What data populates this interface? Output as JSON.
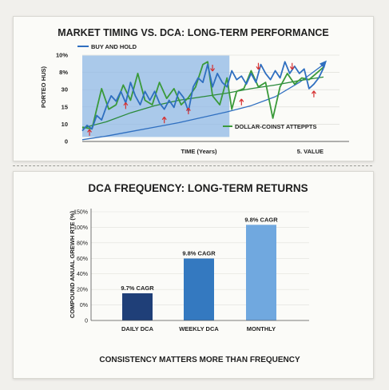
{
  "chart_data": [
    {
      "type": "line",
      "title": "MARKET TIMING VS. DCA: LONG-TERM PERFORMANCE",
      "xlabel": "TIME (Years)",
      "xlabel_right": "5. VALUE",
      "ylabel": "PORTEO HUS)",
      "y_ticks": [
        "10%",
        "8%",
        "30",
        "15",
        "10",
        "0"
      ],
      "ylim": [
        0,
        10
      ],
      "xlim": [
        0,
        5
      ],
      "series": [
        {
          "name": "BUY AND HOLD",
          "color": "#2f6fc0",
          "x": [
            0.0,
            0.1,
            0.2,
            0.3,
            0.4,
            0.5,
            0.6,
            0.7,
            0.8,
            0.9,
            1.0,
            1.1,
            1.2,
            1.3,
            1.4,
            1.5,
            1.6,
            1.7,
            1.8,
            1.9,
            2.0,
            2.1,
            2.2,
            2.3,
            2.4,
            2.5,
            2.6,
            2.7,
            2.8,
            2.9,
            3.0,
            3.1,
            3.2,
            3.3,
            3.4,
            3.5,
            3.6,
            3.7,
            3.8,
            3.9,
            4.0,
            4.1,
            4.2,
            4.3,
            4.4,
            4.5,
            4.6,
            4.7,
            4.8,
            4.9,
            5.0
          ],
          "values": [
            1.2,
            1.8,
            1.4,
            2.9,
            2.4,
            3.9,
            5.1,
            4.5,
            5.6,
            4.3,
            6.6,
            5.1,
            4.1,
            5.6,
            4.6,
            5.6,
            4.3,
            3.6,
            4.6,
            3.8,
            5.6,
            4.9,
            3.4,
            6.1,
            7.1,
            6.6,
            8.6,
            6.1,
            7.6,
            6.6,
            6.1,
            7.9,
            6.9,
            7.3,
            6.4,
            7.6,
            6.6,
            8.6,
            7.6,
            6.9,
            7.9,
            7.1,
            8.9,
            7.6,
            8.4,
            7.6,
            8.1,
            5.9,
            6.4,
            7.1,
            8.2
          ]
        },
        {
          "name": "DOLLAR-COINST ATTEPPTS",
          "color": "#3a9a3a",
          "x": [
            0.0,
            0.2,
            0.4,
            0.55,
            0.7,
            0.85,
            1.0,
            1.15,
            1.3,
            1.45,
            1.6,
            1.75,
            1.9,
            2.05,
            2.2,
            2.35,
            2.5,
            2.6,
            2.7,
            2.85,
            3.0,
            3.1,
            3.2,
            3.35,
            3.5,
            3.65,
            3.8,
            3.95,
            4.1,
            4.25,
            4.4,
            4.55,
            4.7,
            4.85,
            5.0
          ],
          "values": [
            1.6,
            1.4,
            5.9,
            3.6,
            4.1,
            6.3,
            4.6,
            7.6,
            4.6,
            4.1,
            6.6,
            4.8,
            5.9,
            4.1,
            4.9,
            6.1,
            8.6,
            8.9,
            5.1,
            4.1,
            7.1,
            3.6,
            5.6,
            5.9,
            7.9,
            6.1,
            6.6,
            2.6,
            6.1,
            7.6,
            6.4,
            7.1,
            6.9,
            7.6,
            8.3
          ]
        },
        {
          "name": "",
          "color": "#2a8a3a",
          "x": [
            0,
            0.5,
            1,
            1.5,
            2,
            2.5,
            3,
            3.5,
            4,
            4.5,
            5
          ],
          "values": [
            1.5,
            2.2,
            3.2,
            4.0,
            4.6,
            5.0,
            5.4,
            5.9,
            6.3,
            6.8,
            7.2
          ]
        },
        {
          "name": "",
          "color": "#2f6fc0",
          "x": [
            0,
            0.5,
            1,
            1.5,
            2,
            2.5,
            3,
            3.5,
            4,
            4.5,
            5
          ],
          "values": [
            0.2,
            0.6,
            1.1,
            1.6,
            2.1,
            2.7,
            3.3,
            4.0,
            5.0,
            6.6,
            8.6
          ]
        }
      ],
      "markers": [
        {
          "x": 0.15,
          "y": 0.9,
          "dir": "up"
        },
        {
          "x": 0.9,
          "y": 3.9,
          "dir": "up"
        },
        {
          "x": 1.7,
          "y": 2.3,
          "dir": "up"
        },
        {
          "x": 2.2,
          "y": 3.3,
          "dir": "up"
        },
        {
          "x": 2.7,
          "y": 8.3,
          "dir": "down"
        },
        {
          "x": 3.3,
          "y": 4.3,
          "dir": "up"
        },
        {
          "x": 3.65,
          "y": 8.5,
          "dir": "down"
        },
        {
          "x": 4.35,
          "y": 8.5,
          "dir": "down"
        },
        {
          "x": 4.8,
          "y": 5.2,
          "dir": "up"
        }
      ],
      "shaded_region": {
        "x": [
          0,
          3.05
        ],
        "y": [
          0.5,
          9.6
        ]
      }
    },
    {
      "type": "bar",
      "title": "DCA FREQUENCY: LONG-TERM RETURNS",
      "ylabel": "COMPOUND ANUAL GREWH RTE (%)",
      "y_ticks": [
        "150%",
        "100%",
        "80%",
        "60%",
        "40%",
        "20%",
        "0%",
        "0"
      ],
      "categories": [
        "DAILY DCA",
        "WEEKLY DCA",
        "MONTHLY"
      ],
      "values": [
        9.7,
        9.8,
        9.8
      ],
      "bar_levels": [
        0.25,
        0.57,
        0.88
      ],
      "data_labels": [
        "9.7% CAGR",
        "9.8% CAGR",
        "9.8% CAGR"
      ],
      "colors": [
        "#1f3f78",
        "#3479c0",
        "#70a8df"
      ],
      "footer": "CONSISTENCY MATTERS MORE THAN FREQUENCY"
    }
  ]
}
